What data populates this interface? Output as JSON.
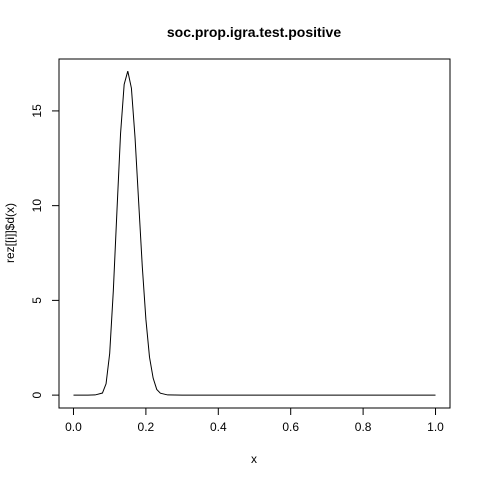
{
  "chart_data": {
    "type": "line",
    "title": "soc.prop.igra.test.positive",
    "xlabel": "x",
    "ylabel": "rez[[i]]$d(x)",
    "xlim": [
      -0.04,
      1.04
    ],
    "ylim": [
      -0.68,
      17.74
    ],
    "grid": false,
    "legend": "none",
    "line_color": "#000000",
    "x_ticks": [
      0.0,
      0.2,
      0.4,
      0.6,
      0.8,
      1.0
    ],
    "x_tick_labels": [
      "0.0",
      "0.2",
      "0.4",
      "0.6",
      "0.8",
      "1.0"
    ],
    "y_ticks": [
      0,
      5,
      10,
      15
    ],
    "y_tick_labels": [
      "0",
      "5",
      "10",
      "15"
    ],
    "series": [
      {
        "x": [
          0.0,
          0.02,
          0.04,
          0.06,
          0.08,
          0.09,
          0.1,
          0.11,
          0.12,
          0.13,
          0.14,
          0.15,
          0.16,
          0.17,
          0.18,
          0.19,
          0.2,
          0.21,
          0.22,
          0.23,
          0.24,
          0.26,
          0.3,
          0.4,
          0.5,
          0.6,
          0.7,
          0.8,
          0.9,
          1.0
        ],
        "y": [
          0,
          0,
          0,
          0.01,
          0.11,
          0.6,
          2.2,
          5.5,
          9.7,
          13.8,
          16.4,
          17.1,
          16.2,
          13.6,
          10.2,
          6.8,
          4.0,
          2.0,
          0.9,
          0.3,
          0.1,
          0.01,
          0,
          0,
          0,
          0,
          0,
          0,
          0,
          0
        ]
      }
    ]
  }
}
